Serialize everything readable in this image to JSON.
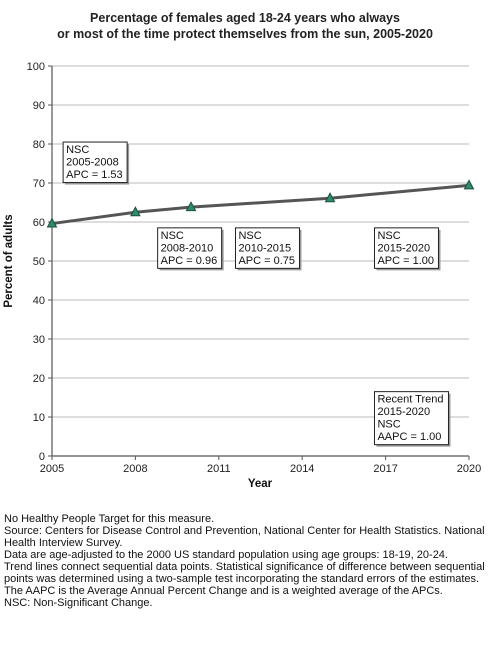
{
  "chart_data": {
    "type": "line",
    "title_lines": [
      "Percentage of females aged 18-24 years who always",
      "or most of the time protect themselves from the sun, 2005-2020"
    ],
    "xlabel": "Year",
    "ylabel": "Percent of adults",
    "xlim": [
      2005,
      2020
    ],
    "ylim": [
      0,
      100
    ],
    "x_ticks": [
      2005,
      2008,
      2011,
      2014,
      2017,
      2020
    ],
    "y_ticks": [
      0,
      10,
      20,
      30,
      40,
      50,
      60,
      70,
      80,
      90,
      100
    ],
    "grid": "horizontal",
    "series": [
      {
        "x": [
          2005,
          2008,
          2010,
          2015,
          2020
        ],
        "y": [
          59.6,
          62.5,
          63.8,
          66.1,
          69.4
        ]
      }
    ],
    "annotations": [
      {
        "lines": [
          "NSC",
          "2005-2008",
          "APC =  1.53"
        ],
        "anchor": [
          2005.4,
          80.5
        ]
      },
      {
        "lines": [
          "NSC",
          "2008-2010",
          "APC =  0.96"
        ],
        "anchor": [
          2008.8,
          58.5
        ]
      },
      {
        "lines": [
          "NSC",
          "2010-2015",
          "APC =  0.75"
        ],
        "anchor": [
          2011.6,
          58.5
        ]
      },
      {
        "lines": [
          "NSC",
          "2015-2020",
          "APC =  1.00"
        ],
        "anchor": [
          2016.6,
          58.5
        ]
      },
      {
        "lines": [
          "Recent Trend",
          "2015-2020",
          "NSC",
          "AAPC =  1.00"
        ],
        "anchor": [
          2016.6,
          16.5
        ]
      }
    ],
    "colors": {
      "line": "#555555",
      "marker_fill": "#2e8b6e",
      "marker_edge": "#1a4f3f",
      "grid": "#bbbbbb",
      "axis": "#555555"
    }
  },
  "footnotes": [
    "No Healthy People Target for this measure.",
    "Source: Centers for Disease Control and Prevention, National Center for Health Statistics. National Health Interview Survey.",
    "Data are age-adjusted to the 2000 US standard population using age groups: 18-19, 20-24.",
    "Trend lines connect sequential data points. Statistical significance of difference between sequential points was determined using a two-sample test incorporating the standard errors of the estimates.",
    "The AAPC is the Average Annual Percent Change and is a weighted average of the APCs.",
    "NSC: Non-Significant Change."
  ]
}
